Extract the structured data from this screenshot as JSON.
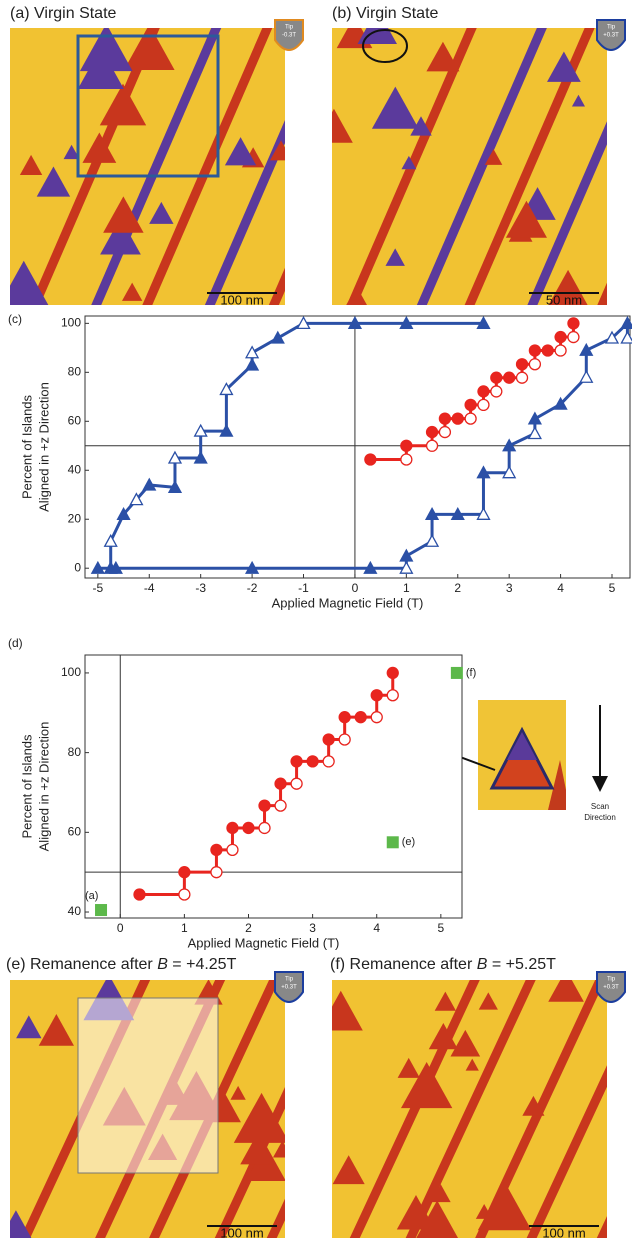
{
  "images": [
    {
      "title": "(a) Virgin State",
      "tip": [
        "Tip",
        "-0.3T"
      ],
      "scale_bar": "100 nm"
    },
    {
      "title": "(b) Virgin State",
      "tip": [
        "Tip",
        "+0.3T"
      ],
      "scale_bar": "50 nm"
    },
    {
      "title": [
        "(e) Remanence after ",
        "B",
        " = +4.25T"
      ],
      "tip": [
        "Tip",
        "+0.3T"
      ],
      "scale_bar": "100 nm"
    },
    {
      "title": [
        "(f) Remanence after ",
        "B",
        " = +5.25T"
      ],
      "tip": [
        "Tip",
        "+0.3T"
      ],
      "scale_bar": "100 nm"
    }
  ],
  "inset": {
    "caption": [
      "Scan",
      "Direction"
    ]
  },
  "chart_data": [
    {
      "type": "line",
      "panel_label": "(c)",
      "xlabel": "Applied Magnetic Field (T)",
      "ylabel": [
        "Percent of Islands",
        "Aligned in +z Direction"
      ],
      "xlim": [
        -5.25,
        5.35
      ],
      "ylim": [
        -4,
        103
      ],
      "xticks": [
        -5,
        -4,
        -3,
        -2,
        -1,
        0,
        1,
        2,
        3,
        4,
        5
      ],
      "yticks": [
        0,
        20,
        40,
        60,
        80,
        100
      ],
      "reference_lines": {
        "x": 0,
        "y": 50
      },
      "series": [
        {
          "color": "#2b50a6",
          "marker": "triangle",
          "x": [
            2.5,
            1,
            0,
            -1,
            -1.5,
            -2,
            -2,
            -2.5,
            -2.5,
            -3,
            -3,
            -3.5,
            -3.5,
            -4,
            -4.25,
            -4.5,
            -4.75,
            -4.75,
            -5
          ],
          "values": [
            100,
            100,
            100,
            100,
            94,
            88,
            83,
            73,
            56,
            56,
            45,
            45,
            33,
            34,
            28,
            22,
            11,
            0,
            0
          ],
          "marker_fill": [
            "filled",
            "filled",
            "filled",
            "open",
            "filled",
            "open",
            "filled",
            "open",
            "filled",
            "open",
            "filled",
            "open",
            "filled",
            "filled",
            "open",
            "filled",
            "open",
            "filled",
            "filled"
          ]
        },
        {
          "color": "#2b50a6",
          "marker": "triangle",
          "x": [
            -4.65,
            -2,
            0.3,
            1,
            1,
            1.5,
            1.5,
            2,
            2.5,
            2.5,
            3,
            3,
            3.5,
            3.5,
            4,
            4.5,
            4.5,
            5,
            5.3,
            5.3
          ],
          "values": [
            0,
            0,
            0,
            0,
            5,
            11,
            22,
            22,
            22,
            39,
            39,
            50,
            55,
            61,
            67,
            78,
            89,
            94,
            100,
            94
          ],
          "marker_fill": [
            "filled",
            "filled",
            "filled",
            "open",
            "filled",
            "open",
            "filled",
            "filled",
            "open",
            "filled",
            "open",
            "filled",
            "open",
            "filled",
            "filled",
            "open",
            "filled",
            "open",
            "filled",
            "open"
          ]
        },
        {
          "color": "#e8251f",
          "marker": "circle",
          "x": [
            0.3,
            1,
            1,
            1.5,
            1.5,
            1.75,
            1.75,
            2,
            2.25,
            2.25,
            2.5,
            2.5,
            2.75,
            2.75,
            3,
            3.25,
            3.25,
            3.5,
            3.5,
            3.75,
            4,
            4,
            4.25,
            4.25
          ],
          "values": [
            44.4,
            44.4,
            50,
            50,
            55.6,
            55.6,
            61.1,
            61.1,
            61.1,
            66.7,
            66.7,
            72.2,
            72.2,
            77.8,
            77.8,
            77.8,
            83.3,
            83.3,
            88.9,
            88.9,
            88.9,
            94.4,
            94.4,
            100
          ],
          "marker_fill": [
            "filled",
            "open",
            "filled",
            "open",
            "filled",
            "open",
            "filled",
            "filled",
            "open",
            "filled",
            "open",
            "filled",
            "open",
            "filled",
            "filled",
            "open",
            "filled",
            "open",
            "filled",
            "filled",
            "open",
            "filled",
            "open",
            "filled"
          ]
        }
      ]
    },
    {
      "type": "line",
      "panel_label": "(d)",
      "xlabel": "Applied Magnetic Field (T)",
      "ylabel": [
        "Percent of Islands",
        "Aligned in +z Direction"
      ],
      "xlim": [
        -0.55,
        5.33
      ],
      "ylim": [
        38.5,
        104.5
      ],
      "xticks": [
        0,
        1,
        2,
        3,
        4,
        5
      ],
      "yticks": [
        40,
        60,
        80,
        100
      ],
      "reference_lines": {
        "x": 0,
        "y": 50
      },
      "series": [
        {
          "color": "#e8251f",
          "marker": "circle",
          "x": [
            0.3,
            1,
            1,
            1.5,
            1.5,
            1.75,
            1.75,
            2,
            2.25,
            2.25,
            2.5,
            2.5,
            2.75,
            2.75,
            3,
            3.25,
            3.25,
            3.5,
            3.5,
            3.75,
            4,
            4,
            4.25,
            4.25
          ],
          "values": [
            44.4,
            44.4,
            50,
            50,
            55.6,
            55.6,
            61.1,
            61.1,
            61.1,
            66.7,
            66.7,
            72.2,
            72.2,
            77.8,
            77.8,
            77.8,
            83.3,
            83.3,
            88.9,
            88.9,
            88.9,
            94.4,
            94.4,
            100
          ],
          "marker_fill": [
            "filled",
            "open",
            "filled",
            "open",
            "filled",
            "open",
            "filled",
            "filled",
            "open",
            "filled",
            "open",
            "filled",
            "open",
            "filled",
            "filled",
            "open",
            "filled",
            "open",
            "filled",
            "filled",
            "open",
            "filled",
            "open",
            "filled"
          ]
        },
        {
          "color": "#5cb84a",
          "marker": "square",
          "line": false,
          "x": [
            -0.3,
            4.25,
            5.25
          ],
          "values": [
            40.5,
            57.5,
            100
          ],
          "point_labels": [
            "(a)",
            "(e)",
            "(f)"
          ]
        }
      ]
    }
  ]
}
